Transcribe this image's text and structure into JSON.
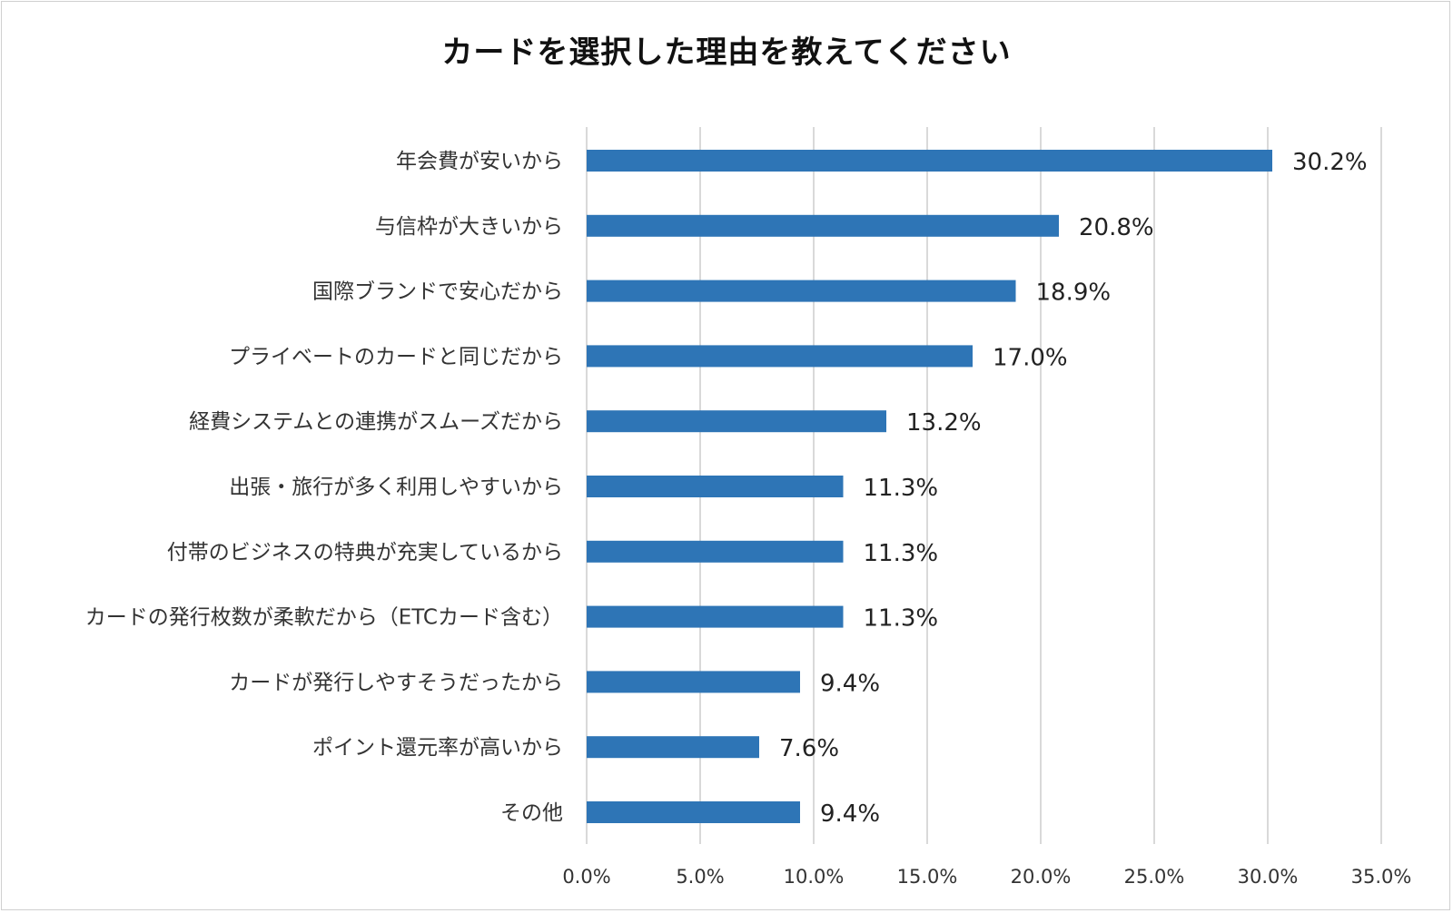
{
  "chart_data": {
    "type": "bar",
    "orientation": "horizontal",
    "title": "カードを選択した理由を教えてください",
    "xlabel": "",
    "ylabel": "",
    "xlim": [
      0,
      35
    ],
    "x_ticks": [
      "0.0%",
      "5.0%",
      "10.0%",
      "15.0%",
      "20.0%",
      "25.0%",
      "30.0%",
      "35.0%"
    ],
    "grid": "vertical",
    "bar_color": "#2e75b6",
    "grid_color": "#d9d9d9",
    "categories": [
      "年会費が安いから",
      "与信枠が大きいから",
      "国際ブランドで安心だから",
      "プライベートのカードと同じだから",
      "経費システムとの連携がスムーズだから",
      "出張・旅行が多く利用しやすいから",
      "付帯のビジネスの特典が充実しているから",
      "カードの発行枚数が柔軟だから（ETCカード含む）",
      "カードが発行しやすそうだったから",
      "ポイント還元率が高いから",
      "その他"
    ],
    "values": [
      30.2,
      20.8,
      18.9,
      17.0,
      13.2,
      11.3,
      11.3,
      11.3,
      9.4,
      7.6,
      9.4
    ],
    "value_labels": [
      "30.2%",
      "20.8%",
      "18.9%",
      "17.0%",
      "13.2%",
      "11.3%",
      "11.3%",
      "11.3%",
      "9.4%",
      "7.6%",
      "9.4%"
    ]
  }
}
